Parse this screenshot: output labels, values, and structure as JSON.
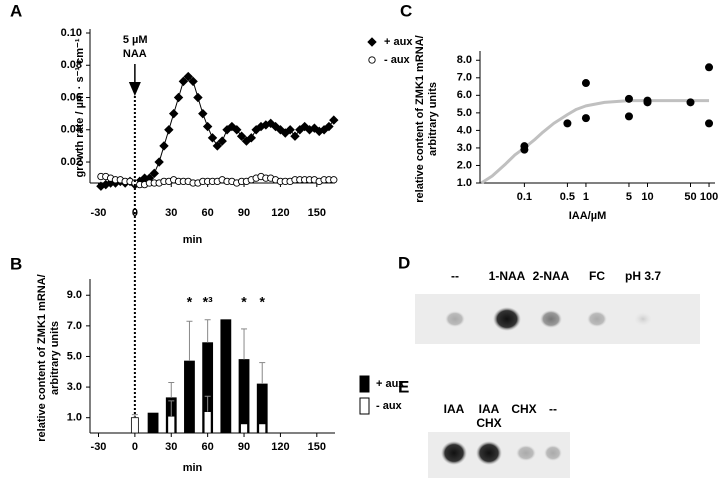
{
  "chart_data": [
    {
      "type": "line",
      "panel_label": "A",
      "x_label": "min",
      "y_label": [
        "growth rate / µm · s⁻¹ cm⁻¹"
      ],
      "annotation": [
        "5 µM",
        "NAA"
      ],
      "annotation_x": 0,
      "xlim": [
        -37,
        165
      ],
      "xticks": [
        -30,
        0,
        30,
        60,
        90,
        120,
        150
      ],
      "ylim": [
        0.007,
        0.1
      ],
      "yticks": [
        0.02,
        0.04,
        0.06,
        0.08,
        {
          "value": 0.1,
          "label": "0.10"
        }
      ],
      "x": [
        -28,
        -24,
        -20,
        -16,
        -12,
        -8,
        -4,
        0,
        4,
        8,
        12,
        16,
        20,
        24,
        28,
        32,
        36,
        40,
        44,
        48,
        52,
        56,
        60,
        64,
        68,
        72,
        76,
        80,
        84,
        88,
        92,
        96,
        100,
        104,
        108,
        112,
        116,
        120,
        124,
        128,
        132,
        136,
        140,
        144,
        148,
        152,
        156,
        160,
        164
      ],
      "series": [
        {
          "name": "+ aux",
          "color": "#000000",
          "marker": "diamond",
          "line": true,
          "values": [
            0.005,
            0.006,
            0.007,
            0.007,
            0.008,
            0.007,
            0.008,
            0.006,
            0.008,
            0.01,
            0.01,
            0.013,
            0.02,
            0.03,
            0.04,
            0.05,
            0.06,
            0.07,
            0.073,
            0.07,
            0.06,
            0.05,
            0.042,
            0.035,
            0.03,
            0.033,
            0.04,
            0.042,
            0.04,
            0.036,
            0.033,
            0.035,
            0.04,
            0.042,
            0.043,
            0.044,
            0.042,
            0.04,
            0.038,
            0.04,
            0.036,
            0.04,
            0.042,
            0.04,
            0.041,
            0.039,
            0.04,
            0.042,
            0.046
          ]
        },
        {
          "name": "- aux",
          "color": "#ffffff",
          "marker": "circle",
          "line": false,
          "values": [
            0.011,
            0.011,
            0.01,
            0.009,
            0.009,
            0.008,
            0.008,
            0.007,
            0.006,
            0.006,
            0.007,
            0.007,
            0.007,
            0.008,
            0.008,
            0.009,
            0.008,
            0.008,
            0.008,
            0.007,
            0.007,
            0.008,
            0.008,
            0.008,
            0.008,
            0.009,
            0.008,
            0.008,
            0.007,
            0.008,
            0.008,
            0.009,
            0.01,
            0.011,
            0.01,
            0.01,
            0.009,
            0.008,
            0.008,
            0.008,
            0.009,
            0.009,
            0.009,
            0.009,
            0.009,
            0.008,
            0.009,
            0.009,
            0.009
          ]
        }
      ]
    },
    {
      "type": "bar",
      "panel_label": "B",
      "x_label": "min",
      "y_label": [
        "relative content of ZMK1 mRNA/",
        "arbitrary units"
      ],
      "xlim": [
        -37,
        165
      ],
      "xticks": [
        -30,
        0,
        30,
        60,
        90,
        120,
        150
      ],
      "ylim": [
        0,
        9.8
      ],
      "yticks": [
        {
          "value": 1,
          "label": "1.0"
        },
        {
          "value": 3,
          "label": "3.0"
        },
        {
          "value": 5,
          "label": "5.0"
        },
        {
          "value": 7,
          "label": "7.0"
        },
        {
          "value": 9,
          "label": "9.0"
        }
      ],
      "series": [
        {
          "name": "+ aux",
          "color": "#000000",
          "x": [
            15,
            30,
            45,
            60,
            75,
            90,
            105
          ],
          "values": [
            1.3,
            2.3,
            4.7,
            5.9,
            7.4,
            4.8,
            3.2
          ],
          "errors": [
            null,
            1.0,
            2.6,
            1.5,
            null,
            2.0,
            1.4
          ]
        },
        {
          "name": "- aux",
          "color": "#ffffff",
          "x": [
            0,
            30,
            60,
            90,
            105
          ],
          "values": [
            1.0,
            1.1,
            1.4,
            0.6,
            0.6
          ],
          "errors": [
            0.2,
            1.0,
            1.0,
            null,
            null
          ]
        }
      ],
      "annotations": [
        {
          "text": "*",
          "x": 45,
          "y": 8.5
        },
        {
          "text": "*³",
          "x": 60,
          "y": 8.5
        },
        {
          "text": "*",
          "x": 90,
          "y": 8.5
        },
        {
          "text": "*",
          "x": 105,
          "y": 8.5
        }
      ]
    },
    {
      "type": "scatter",
      "panel_label": "C",
      "x_label": "IAA/µM",
      "y_label": [
        "relative content of ZMK1 mRNA/",
        "arbitrary units"
      ],
      "x_scale": "log",
      "xlim": [
        0.019,
        125
      ],
      "xticks": [
        0.1,
        0.5,
        1,
        5,
        10,
        50,
        100
      ],
      "ylim": [
        1,
        8.3
      ],
      "yticks": [
        {
          "value": 1,
          "label": "1.0"
        },
        {
          "value": 2,
          "label": "2.0"
        },
        {
          "value": 3,
          "label": "3.0"
        },
        {
          "value": 4,
          "label": "4.0"
        },
        {
          "value": 5,
          "label": "5.0"
        },
        {
          "value": 6,
          "label": "6.0"
        },
        {
          "value": 7,
          "label": "7.0"
        },
        {
          "value": 8,
          "label": "8.0"
        }
      ],
      "color": "#000000",
      "x": [
        0.1,
        0.1,
        0.5,
        1,
        1,
        5,
        5,
        10,
        10,
        50,
        100,
        100
      ],
      "values": [
        3.1,
        2.9,
        4.4,
        6.7,
        4.7,
        5.8,
        4.8,
        5.7,
        5.6,
        5.6,
        7.6,
        4.4
      ],
      "fit": {
        "color": "#c0c0c0",
        "x": [
          0.02,
          0.03,
          0.05,
          0.07,
          0.1,
          0.15,
          0.2,
          0.3,
          0.5,
          0.7,
          1,
          2,
          5,
          10,
          50,
          100
        ],
        "values": [
          1.0,
          1.4,
          2.1,
          2.6,
          3.0,
          3.5,
          3.9,
          4.4,
          4.9,
          5.2,
          5.4,
          5.6,
          5.7,
          5.7,
          5.7,
          5.7
        ]
      }
    }
  ],
  "blots": [
    {
      "panel_label": "D",
      "lanes": [
        "--",
        "1-NAA",
        "2-NAA",
        "FC",
        "pH 3.7"
      ]
    },
    {
      "panel_label": "E",
      "lanes": [
        "IAA",
        "IAA\nCHX",
        "CHX",
        "--"
      ]
    }
  ]
}
